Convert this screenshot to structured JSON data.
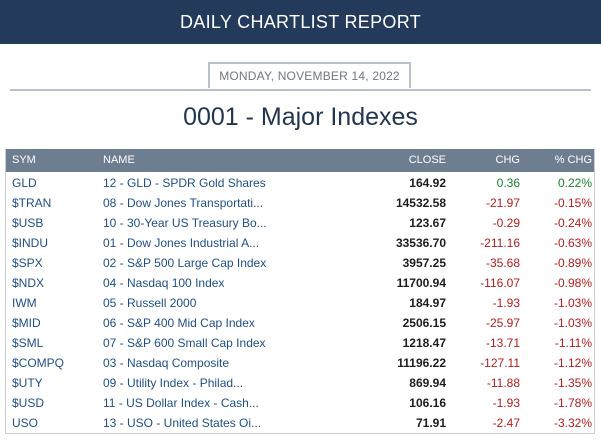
{
  "header": {
    "title": "DAILY CHARTLIST REPORT"
  },
  "report": {
    "date": "MONDAY, NOVEMBER 14, 2022",
    "title": "0001 - Major Indexes"
  },
  "table": {
    "columns": [
      "SYM",
      "NAME",
      "CLOSE",
      "CHG",
      "% CHG"
    ],
    "rows": [
      {
        "sym": "GLD",
        "name": "12 - GLD - SPDR Gold Shares",
        "close": "164.92",
        "chg": "0.36",
        "pct": "0.22%",
        "dir": "pos"
      },
      {
        "sym": "$TRAN",
        "name": "08 - Dow Jones Transportati...",
        "close": "14532.58",
        "chg": "-21.97",
        "pct": "-0.15%",
        "dir": "neg"
      },
      {
        "sym": "$USB",
        "name": "10 - 30-Year US Treasury Bo...",
        "close": "123.67",
        "chg": "-0.29",
        "pct": "-0.24%",
        "dir": "neg"
      },
      {
        "sym": "$INDU",
        "name": "01 - Dow Jones Industrial A...",
        "close": "33536.70",
        "chg": "-211.16",
        "pct": "-0.63%",
        "dir": "neg"
      },
      {
        "sym": "$SPX",
        "name": "02 - S&P 500 Large Cap Index",
        "close": "3957.25",
        "chg": "-35.68",
        "pct": "-0.89%",
        "dir": "neg"
      },
      {
        "sym": "$NDX",
        "name": "04 - Nasdaq 100 Index",
        "close": "11700.94",
        "chg": "-116.07",
        "pct": "-0.98%",
        "dir": "neg"
      },
      {
        "sym": "IWM",
        "name": "05 - Russell 2000",
        "close": "184.97",
        "chg": "-1.93",
        "pct": "-1.03%",
        "dir": "neg"
      },
      {
        "sym": "$MID",
        "name": "06 - S&P 400 Mid Cap Index",
        "close": "2506.15",
        "chg": "-25.97",
        "pct": "-1.03%",
        "dir": "neg"
      },
      {
        "sym": "$SML",
        "name": "07 - S&P 600 Small Cap Index",
        "close": "1218.47",
        "chg": "-13.71",
        "pct": "-1.11%",
        "dir": "neg"
      },
      {
        "sym": "$COMPQ",
        "name": "03 - Nasdaq Composite",
        "close": "11196.22",
        "chg": "-127.11",
        "pct": "-1.12%",
        "dir": "neg"
      },
      {
        "sym": "$UTY",
        "name": "09 - Utility Index - Philad...",
        "close": "869.94",
        "chg": "-11.88",
        "pct": "-1.35%",
        "dir": "neg"
      },
      {
        "sym": "$USD",
        "name": "11 - US Dollar Index - Cash...",
        "close": "106.16",
        "chg": "-1.93",
        "pct": "-1.78%",
        "dir": "neg"
      },
      {
        "sym": "USO",
        "name": "13 - USO - United States Oi...",
        "close": "71.91",
        "chg": "-2.47",
        "pct": "-3.32%",
        "dir": "neg"
      }
    ]
  },
  "colors": {
    "header_bg": "#233a5a",
    "table_header_bg": "#6d7e91",
    "positive": "#16812e",
    "negative": "#b31c1c",
    "link": "#1f4f86"
  }
}
